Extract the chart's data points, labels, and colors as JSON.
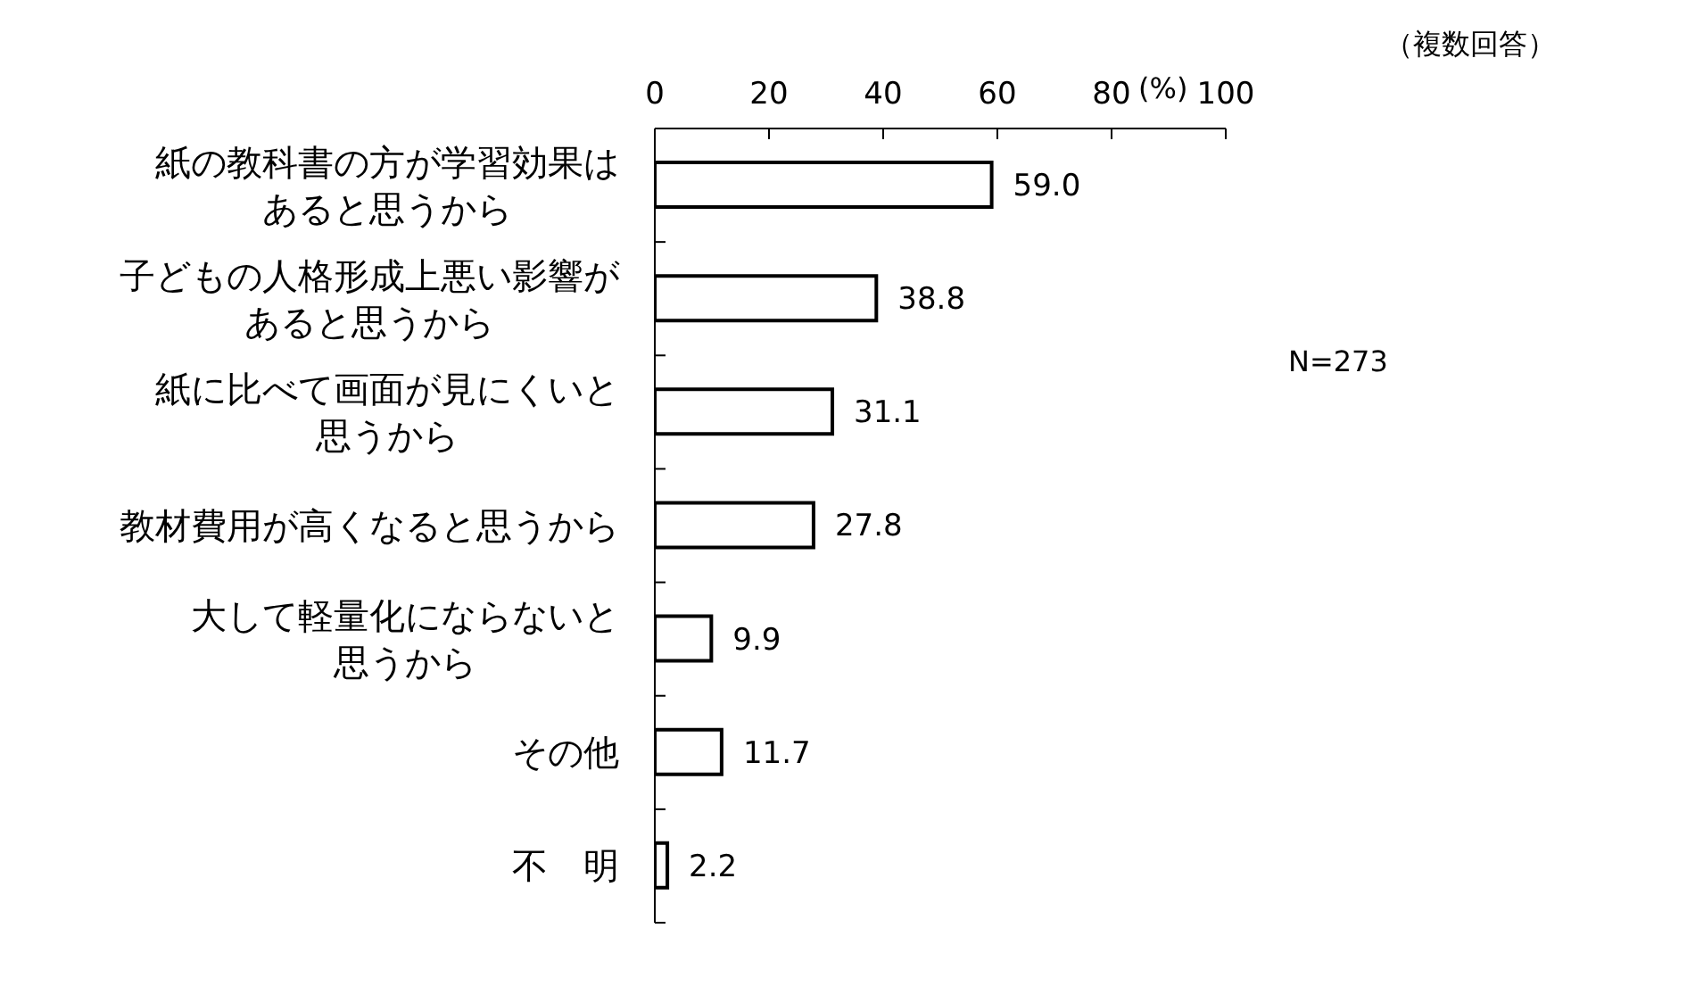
{
  "chart_data": {
    "type": "bar",
    "orientation": "horizontal",
    "categories": [
      "紙の教科書の方が学習効果はあると思うから",
      "子どもの人格形成上悪い影響があると思うから",
      "紙に比べて画面が見にくいと思うから",
      "教材費用が高くなると思うから",
      "大して軽量化にならないと思うから",
      "その他",
      "不　明"
    ],
    "values": [
      59.0,
      38.8,
      31.1,
      27.8,
      9.9,
      11.7,
      2.2
    ],
    "value_labels": [
      "59.0",
      "38.8",
      "31.1",
      "27.8",
      "9.9",
      "11.7",
      "2.2"
    ],
    "color": "#ffffff",
    "xlim": [
      0,
      100
    ],
    "xticks": [
      0,
      20,
      40,
      60,
      80,
      100
    ],
    "xlabel": "(%)",
    "annotations": [
      "（複数回答）",
      "N=273"
    ]
  }
}
